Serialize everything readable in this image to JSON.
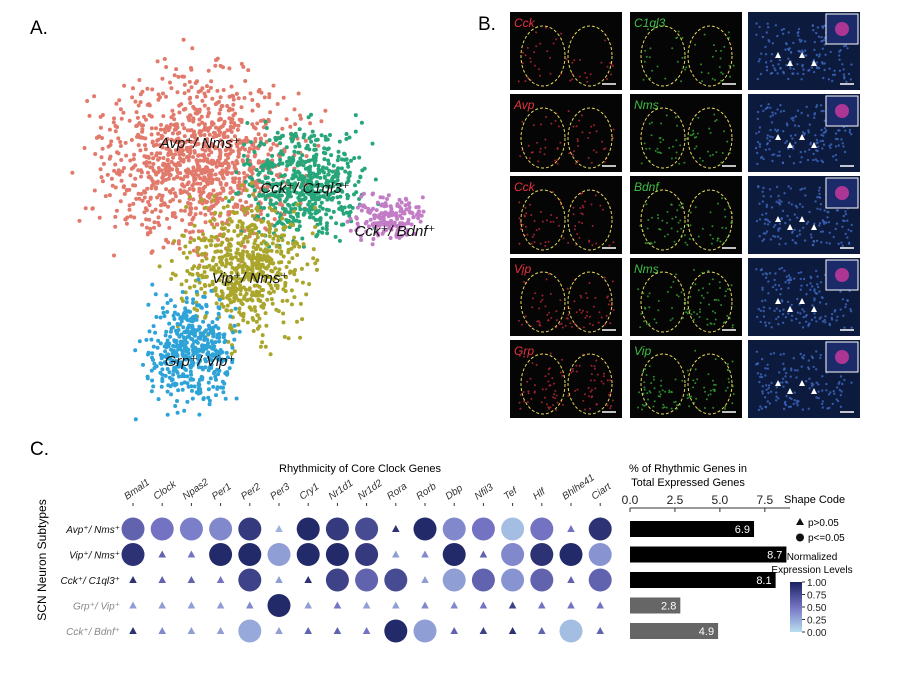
{
  "panel_labels": [
    "A.",
    "B.",
    "C."
  ],
  "panel_a": {
    "clusters": [
      {
        "label": "Avp⁺/ Nms⁺",
        "color": "#e27a6c"
      },
      {
        "label": "Cck⁺/ C1ql3⁺",
        "color": "#27a67a"
      },
      {
        "label": "Cck⁺/ Bdnf⁺",
        "color": "#c27dc6"
      },
      {
        "label": "Vip⁺/ Nms⁺",
        "color": "#aaa62c"
      },
      {
        "label": "Grp⁺/ Vip⁺",
        "color": "#2ea3d8"
      }
    ]
  },
  "panel_b": {
    "rows": [
      {
        "red": "Cck",
        "green": "C1ql3"
      },
      {
        "red": "Avp",
        "green": "Nms"
      },
      {
        "red": "Cck",
        "green": "Bdnf"
      },
      {
        "red": "Vip",
        "green": "Nms"
      },
      {
        "red": "Grp",
        "green": "Vip"
      }
    ]
  },
  "panel_c": {
    "dot_plot": {
      "title": "Rhythmicity of Core Clock Genes",
      "y_label": "SCN Neuron Subtypes",
      "genes": [
        "Bmal1",
        "Clock",
        "Npas2",
        "Per1",
        "Per2",
        "Per3",
        "Cry1",
        "Nr1d1",
        "Nr1d2",
        "Rora",
        "Rorb",
        "Dbp",
        "Nfil3",
        "Tef",
        "Hlf",
        "Bhlhe41",
        "Ciart"
      ],
      "subtypes": [
        "Avp⁺/ Nms⁺",
        "Vip⁺/ Nms⁺",
        "Cck⁺/ C1ql3⁺",
        "Grp⁺/ Vip⁺",
        "Cck⁺/ Bdnf⁺"
      ],
      "subtype_colors": [
        "#111111",
        "#111111",
        "#111111",
        "#888888",
        "#888888"
      ],
      "levels": [
        [
          0.6,
          0.5,
          0.45,
          0.4,
          0.85,
          0.2,
          0.95,
          0.85,
          0.75,
          0.9,
          0.95,
          0.4,
          0.5,
          0.15,
          0.5,
          0.5,
          0.9
        ],
        [
          0.9,
          0.6,
          0.5,
          0.95,
          0.95,
          0.3,
          0.95,
          0.95,
          0.85,
          0.3,
          0.4,
          0.95,
          0.6,
          0.4,
          0.9,
          0.95,
          0.35
        ],
        [
          0.9,
          0.6,
          0.6,
          0.5,
          0.8,
          0.3,
          0.9,
          0.8,
          0.6,
          0.75,
          0.3,
          0.3,
          0.6,
          0.35,
          0.6,
          0.6,
          0.6
        ],
        [
          0.3,
          0.3,
          0.3,
          0.3,
          0.4,
          0.95,
          0.3,
          0.5,
          0.3,
          0.3,
          0.4,
          0.4,
          0.5,
          0.8,
          0.5,
          0.5,
          0.5
        ],
        [
          0.9,
          0.4,
          0.3,
          0.3,
          0.25,
          0.3,
          0.6,
          0.6,
          0.5,
          0.95,
          0.3,
          0.6,
          0.8,
          0.9,
          0.6,
          0.15,
          0.6
        ]
      ],
      "significant": [
        [
          1,
          1,
          1,
          1,
          1,
          0,
          1,
          1,
          1,
          0,
          1,
          1,
          1,
          1,
          1,
          0,
          1
        ],
        [
          1,
          0,
          0,
          1,
          1,
          1,
          1,
          1,
          1,
          0,
          0,
          1,
          0,
          1,
          1,
          1,
          1
        ],
        [
          0,
          0,
          0,
          0,
          1,
          0,
          0,
          1,
          1,
          1,
          0,
          1,
          1,
          1,
          1,
          0,
          1
        ],
        [
          0,
          0,
          0,
          0,
          0,
          1,
          0,
          0,
          0,
          0,
          0,
          0,
          0,
          0,
          0,
          0,
          0
        ],
        [
          0,
          0,
          0,
          0,
          1,
          0,
          0,
          0,
          0,
          1,
          1,
          0,
          0,
          0,
          0,
          1,
          0
        ]
      ],
      "colormap": [
        "#b8def0",
        "#7473c3",
        "#1a2260"
      ]
    },
    "bar_chart": {
      "type": "bar",
      "title": [
        "% of Rhythmic Genes in",
        "Total Expressed Genes"
      ],
      "values": [
        6.9,
        8.7,
        8.1,
        2.8,
        4.9
      ],
      "colors": [
        "#000000",
        "#000000",
        "#000000",
        "#666666",
        "#666666"
      ],
      "xlim": [
        0,
        8.9
      ],
      "xticks": [
        {
          "value": 0,
          "label": "0.0"
        },
        {
          "value": 2.5,
          "label": "2.5"
        },
        {
          "value": 5,
          "label": "5.0"
        },
        {
          "value": 7.5,
          "label": "7.5"
        }
      ]
    },
    "shape_legend": {
      "title": "Shape Code",
      "triangle": "p>0.05",
      "circle": "p<=0.05"
    },
    "color_legend": {
      "title": [
        "Normalized",
        "Expression Levels"
      ],
      "ticks": [
        {
          "value": 1,
          "label": "1.00"
        },
        {
          "value": 0.75,
          "label": "0.75"
        },
        {
          "value": 0.5,
          "label": "0.50"
        },
        {
          "value": 0.25,
          "label": "0.25"
        },
        {
          "value": 0,
          "label": "0.00"
        }
      ]
    }
  }
}
